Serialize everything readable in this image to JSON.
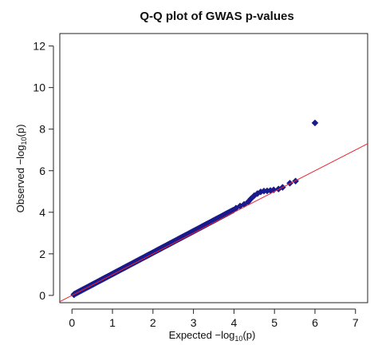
{
  "chart_data": {
    "type": "scatter",
    "title": "Q-Q plot of GWAS p-values",
    "xlabel": {
      "prefix": "Expected  −log",
      "sub": "10",
      "suffix": "(p)"
    },
    "ylabel": {
      "prefix": "Observed  −log",
      "sub": "10",
      "suffix": "(p)"
    },
    "xlim": [
      -0.3,
      7.3
    ],
    "ylim": [
      -0.35,
      12.6
    ],
    "xticks": [
      0,
      1,
      2,
      3,
      4,
      5,
      6,
      7
    ],
    "yticks": [
      0,
      2,
      4,
      6,
      8,
      10,
      12
    ],
    "xtick_labels": [
      "0",
      "1",
      "2",
      "3",
      "4",
      "5",
      "6",
      "7"
    ],
    "ytick_labels": [
      "0",
      "2",
      "4",
      "6",
      "8",
      "10",
      "12"
    ],
    "reference_line": {
      "slope": 1,
      "intercept": 0,
      "color": "#e8262e"
    },
    "point_color": "#1a1a8c",
    "series": [
      {
        "points": [
          [
            0.05,
            0.03
          ],
          [
            4.05,
            4.2
          ],
          [
            4.15,
            4.3
          ],
          [
            4.25,
            4.38
          ],
          [
            4.35,
            4.5
          ],
          [
            4.42,
            4.65
          ],
          [
            4.5,
            4.8
          ],
          [
            4.58,
            4.9
          ],
          [
            4.66,
            4.98
          ],
          [
            4.74,
            5.02
          ],
          [
            4.82,
            5.03
          ],
          [
            4.9,
            5.05
          ],
          [
            4.98,
            5.08
          ],
          [
            5.1,
            5.12
          ],
          [
            5.2,
            5.2
          ],
          [
            5.38,
            5.4
          ],
          [
            5.52,
            5.5
          ],
          [
            6.0,
            8.3
          ]
        ],
        "dense_run": {
          "x_start": 0.05,
          "x_end": 4.0,
          "step": 0.02,
          "y_ratio": 1.03
        }
      }
    ],
    "grid": false,
    "legend": "none"
  }
}
